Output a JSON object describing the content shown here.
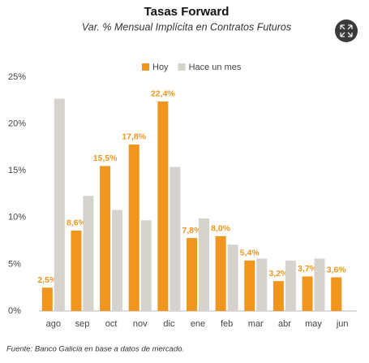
{
  "chart_data": {
    "type": "bar",
    "title": "Tasas Forward",
    "subtitle": "Var. % Mensual Implícita en Contratos Futuros",
    "categories": [
      "ago",
      "sep",
      "oct",
      "nov",
      "dic",
      "ene",
      "feb",
      "mar",
      "abr",
      "may",
      "jun"
    ],
    "series": [
      {
        "name": "Hoy",
        "color": "#f0961e",
        "values": [
          2.5,
          8.6,
          15.5,
          17.8,
          22.4,
          7.8,
          8.0,
          5.4,
          3.2,
          3.7,
          3.6
        ],
        "value_labels": [
          "2,5%",
          "8,6%",
          "15,5%",
          "17,8%",
          "22,4%",
          "7,8%",
          "8,0%",
          "5,4%",
          "3,2%",
          "3,7%",
          "3,6%"
        ]
      },
      {
        "name": "Hace un mes",
        "color": "#d6d3ce",
        "values": [
          22.7,
          12.3,
          10.8,
          9.7,
          15.4,
          9.9,
          7.1,
          5.6,
          5.4,
          5.6,
          null
        ]
      }
    ],
    "ylim": [
      0,
      25
    ],
    "yticks": [
      {
        "value": 0,
        "label": "0%"
      },
      {
        "value": 5,
        "label": "5%"
      },
      {
        "value": 10,
        "label": "10%"
      },
      {
        "value": 15,
        "label": "15%"
      },
      {
        "value": 20,
        "label": "20%"
      },
      {
        "value": 25,
        "label": "25%"
      }
    ],
    "legend": "top",
    "footnote": "Fuente: Banco Galicia en base a datos de mercado."
  }
}
